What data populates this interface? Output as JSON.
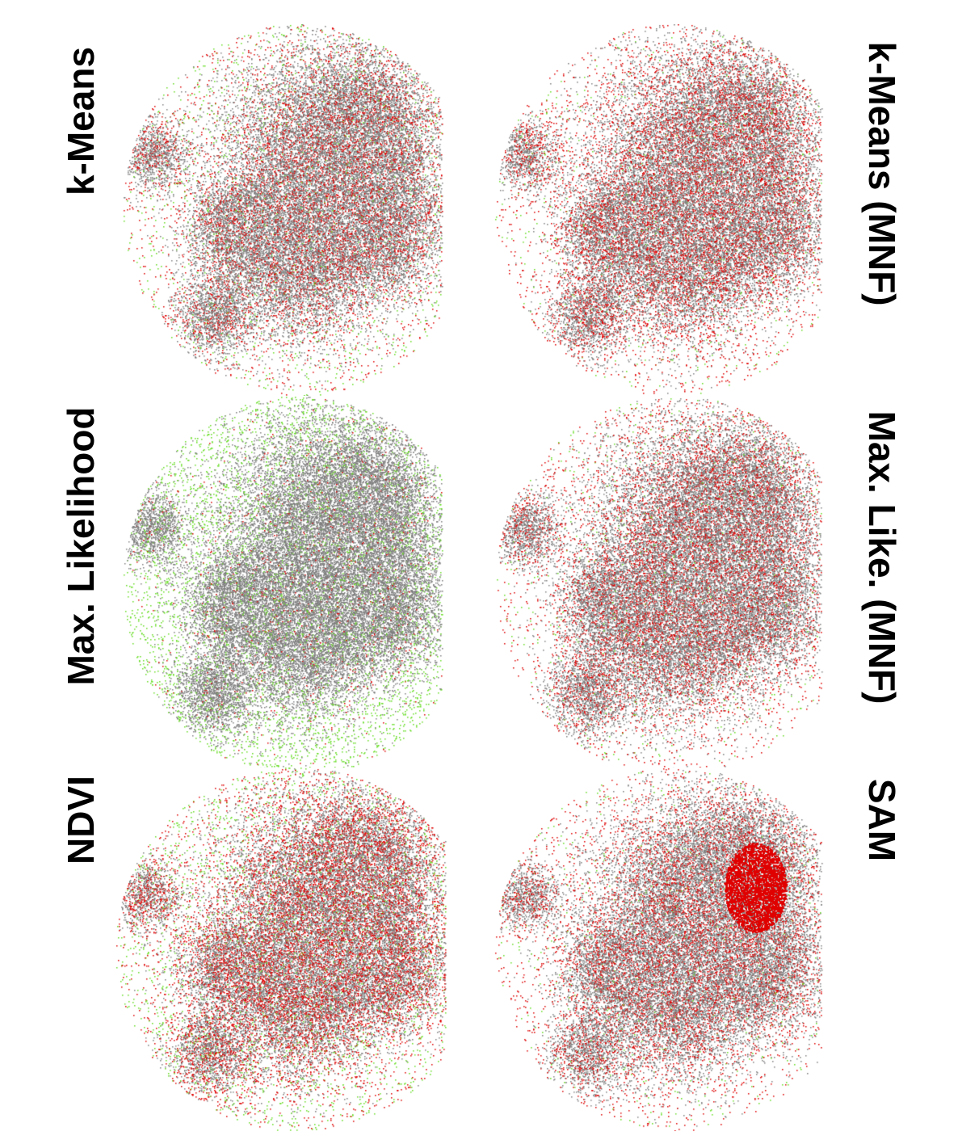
{
  "figure": {
    "panels": [
      {
        "id": "kmeans",
        "label": "k-Means",
        "seed": 11,
        "urban": 0.55,
        "red": 0.3,
        "green": 0.12,
        "redBlob": 0.0
      },
      {
        "id": "maxlike",
        "label": "Max. Likelihood",
        "seed": 23,
        "urban": 0.7,
        "red": 0.05,
        "green": 0.45,
        "redBlob": 0.0
      },
      {
        "id": "ndvi",
        "label": "NDVI",
        "seed": 37,
        "urban": 0.45,
        "red": 0.45,
        "green": 0.2,
        "redBlob": 0.0
      },
      {
        "id": "kmeans-mnf",
        "label": "k-Means (MNF)",
        "seed": 41,
        "urban": 0.5,
        "red": 0.38,
        "green": 0.05,
        "redBlob": 0.0
      },
      {
        "id": "maxlike-mnf",
        "label": "Max. Like. (MNF)",
        "seed": 53,
        "urban": 0.55,
        "red": 0.35,
        "green": 0.05,
        "redBlob": 0.0
      },
      {
        "id": "sam",
        "label": "SAM",
        "seed": 67,
        "urban": 0.5,
        "red": 0.35,
        "green": 0.05,
        "redBlob": 1.0
      }
    ],
    "colors": {
      "urban": "#808080",
      "red": "#e00000",
      "green": "#66dd22",
      "background": "#ffffff"
    }
  }
}
